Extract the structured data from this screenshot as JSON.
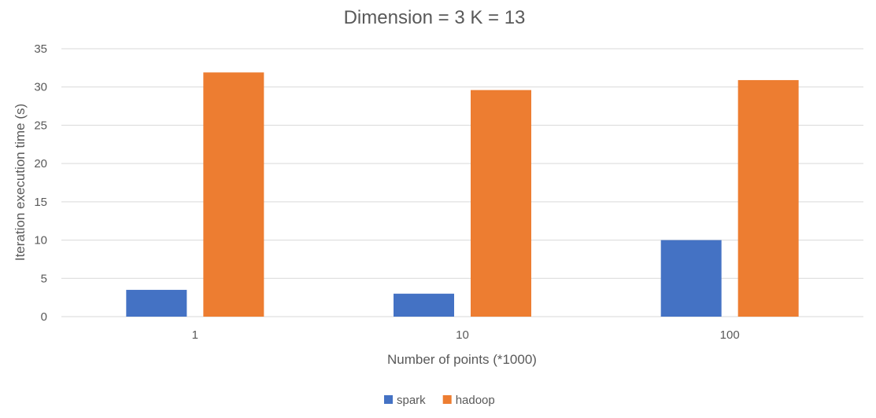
{
  "chart_data": {
    "type": "bar",
    "title": "Dimension = 3 K = 13",
    "xlabel": "Number of points (*1000)",
    "ylabel": "Iteration execution time (s)",
    "categories": [
      "1",
      "10",
      "100"
    ],
    "series": [
      {
        "name": "spark",
        "values": [
          3.5,
          3.0,
          10.0
        ],
        "color": "#4472c4"
      },
      {
        "name": "hadoop",
        "values": [
          31.9,
          29.6,
          30.9
        ],
        "color": "#ed7d31"
      }
    ],
    "ylim": [
      0,
      35
    ],
    "yticks": [
      0,
      5,
      10,
      15,
      20,
      25,
      30,
      35
    ],
    "grid": true,
    "legend_position": "bottom"
  }
}
